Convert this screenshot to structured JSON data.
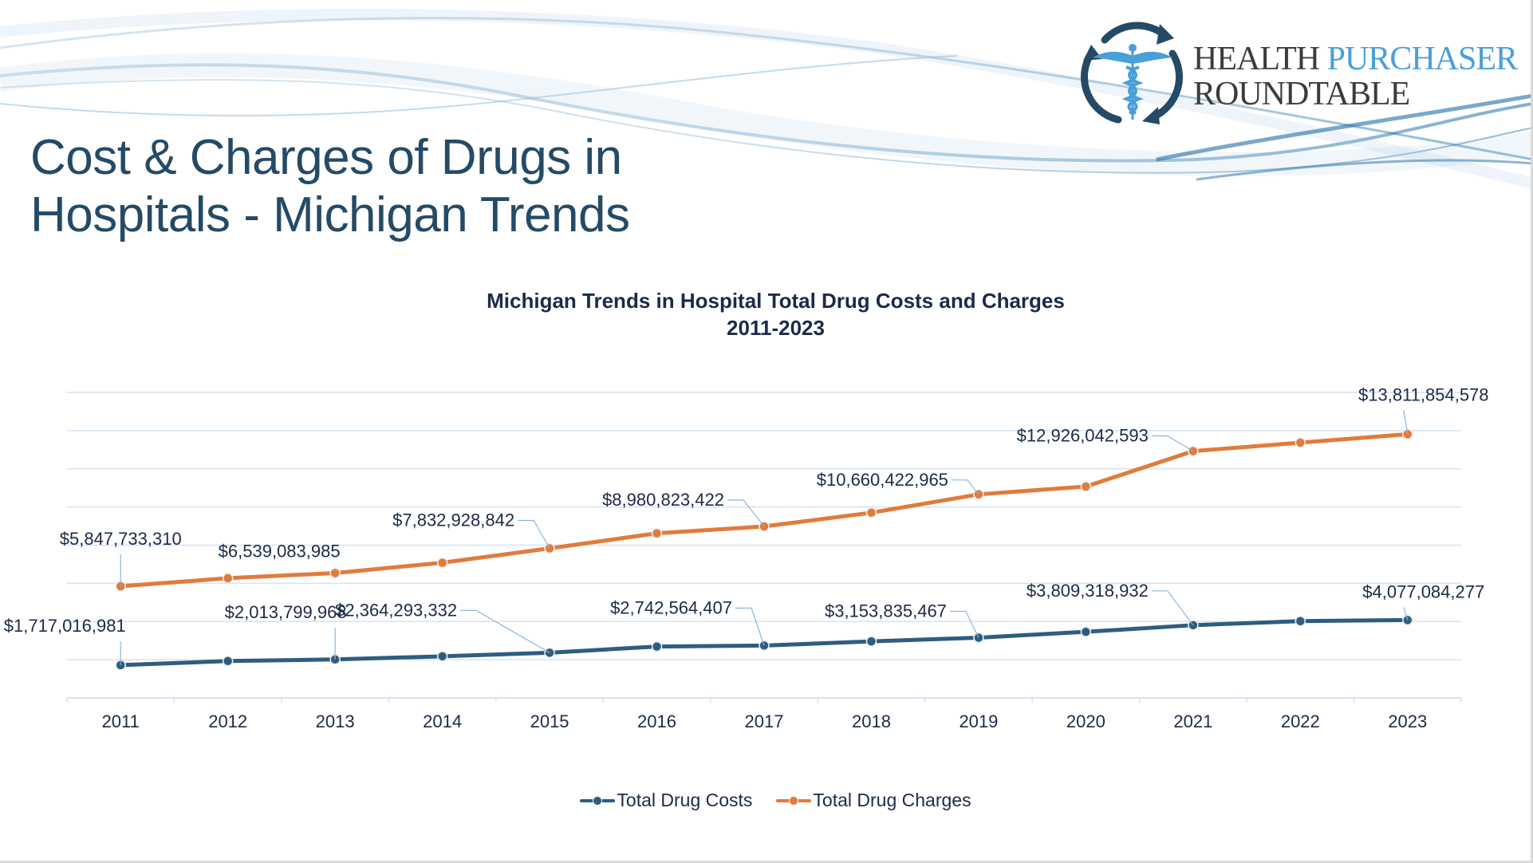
{
  "slide": {
    "title_line1": "Cost & Charges of Drugs in",
    "title_line2": "Hospitals - Michigan Trends"
  },
  "logo": {
    "word1": "HEALTH",
    "word2": "PURCHASER",
    "word3": "ROUNDTABLE",
    "icon": "caduceus-cycle-icon"
  },
  "colors": {
    "title": "#244a66",
    "costs": "#2e5d80",
    "charges": "#e07b3c",
    "grid": "#d4e3f2",
    "leader": "#8db4dc",
    "text": "#1b2a47"
  },
  "chart_data": {
    "type": "line",
    "title": "Michigan Trends in Hospital Total Drug Costs and Charges",
    "subtitle": "2011-2023",
    "xlabel": "",
    "ylabel": "",
    "ylim": [
      0,
      16000000000
    ],
    "y_gridline_step": 2000000000,
    "y_tick_labels_shown": false,
    "grid": true,
    "legend_position": "bottom",
    "categories": [
      "2011",
      "2012",
      "2013",
      "2014",
      "2015",
      "2016",
      "2017",
      "2018",
      "2019",
      "2020",
      "2021",
      "2022",
      "2023"
    ],
    "series": [
      {
        "name": "Total Drug Costs",
        "color": "#2e5d80",
        "values": [
          1717016981,
          1930000000,
          2013799968,
          2180000000,
          2364293332,
          2690000000,
          2742564407,
          2960000000,
          3153835467,
          3460000000,
          3809318932,
          4020000000,
          4077084277
        ],
        "labels": [
          "$1,717,016,981",
          null,
          "$2,013,799,968",
          null,
          "$2,364,293,332",
          null,
          "$2,742,564,407",
          null,
          "$3,153,835,467",
          null,
          "$3,809,318,932",
          null,
          "$4,077,084,277"
        ]
      },
      {
        "name": "Total Drug Charges",
        "color": "#e07b3c",
        "values": [
          5847733310,
          6270000000,
          6539083985,
          7080000000,
          7832928842,
          8620000000,
          8980823422,
          9700000000,
          10660422965,
          11070000000,
          12926042593,
          13370000000,
          13811854578
        ],
        "labels": [
          "$5,847,733,310",
          null,
          "$6,539,083,985",
          null,
          "$7,832,928,842",
          null,
          "$8,980,823,422",
          null,
          "$10,660,422,965",
          null,
          "$12,926,042,593",
          null,
          "$13,811,854,578"
        ]
      }
    ]
  }
}
